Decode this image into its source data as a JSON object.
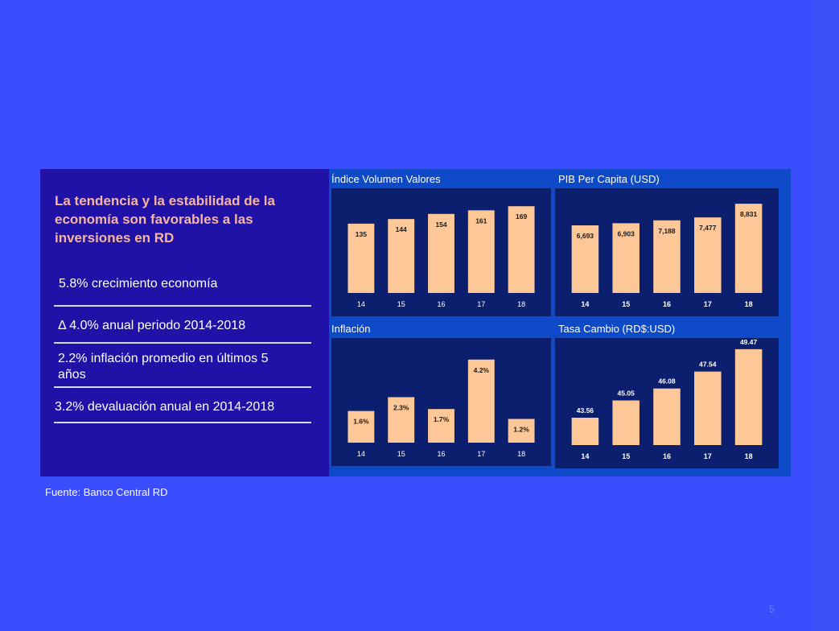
{
  "left_panel": {
    "headline": "La tendencia y la estabilidad de la economía son favorables a las inversiones en RD",
    "bullets": [
      "5.8% crecimiento economía",
      "Δ 4.0% anual periodo 2014-2018",
      "2.2% inflación promedio en últimos 5 años",
      "3.2% devaluación anual en 2014-2018"
    ]
  },
  "source": "Fuente: Banco Central RD",
  "page_number": "5",
  "colors": {
    "background": "#3a4cfb",
    "panel": "#2012a6",
    "chart_area": "#0e4ac8",
    "chart_box": "#0b1f6e",
    "bar": "#fdc797",
    "headline": "#f6b5a0"
  },
  "chart_data": [
    {
      "type": "bar",
      "title": "Índice Volumen Valores",
      "categories": [
        "14",
        "15",
        "16",
        "17",
        "18"
      ],
      "values": [
        135,
        144,
        154,
        161,
        169
      ],
      "labels": [
        "135",
        "144",
        "154",
        "161",
        "169"
      ],
      "ylim": [
        0,
        185
      ],
      "label_position": "inside-top",
      "tick_style": "normal"
    },
    {
      "type": "bar",
      "title": "PIB Per Capita (USD)",
      "categories": [
        "14",
        "15",
        "16",
        "17",
        "18"
      ],
      "values": [
        6693,
        6903,
        7188,
        7477,
        8831
      ],
      "labels": [
        "6,693",
        "6,903",
        "7,188",
        "7,477",
        "8,831"
      ],
      "ylim": [
        0,
        9400
      ],
      "label_position": "inside-top",
      "tick_style": "bold"
    },
    {
      "type": "bar",
      "title": "Inflación",
      "categories": [
        "14",
        "15",
        "16",
        "17",
        "18"
      ],
      "values": [
        1.6,
        2.3,
        1.7,
        4.2,
        1.2
      ],
      "labels": [
        "1.6%",
        "2.3%",
        "1.7%",
        "4.2%",
        "1.2%"
      ],
      "ylim": [
        0,
        4.8
      ],
      "label_position": "inside-top",
      "tick_style": "normal"
    },
    {
      "type": "bar",
      "title": "Tasa Cambio (RD$:USD)",
      "categories": [
        "14",
        "15",
        "16",
        "17",
        "18"
      ],
      "values": [
        43.56,
        45.05,
        46.08,
        47.54,
        49.47
      ],
      "labels": [
        "43.56",
        "45.05",
        "46.08",
        "47.54",
        "49.47"
      ],
      "ylim": [
        41.2,
        49.6
      ],
      "label_position": "above",
      "tick_style": "bold"
    }
  ]
}
